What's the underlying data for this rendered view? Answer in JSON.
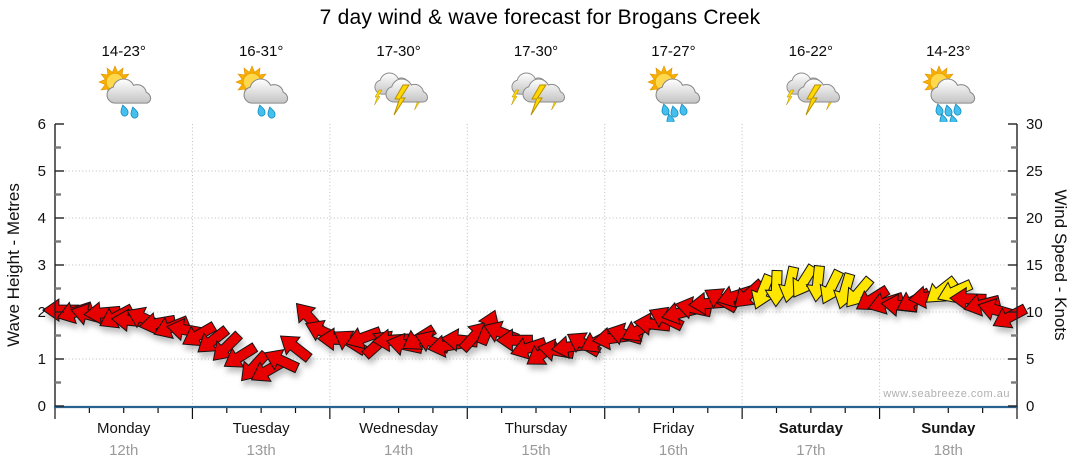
{
  "title": "7 day wind & wave forecast for Brogans Creek",
  "watermark": "www.seabreeze.com.au",
  "days": [
    {
      "name": "Monday",
      "date": "12th",
      "temp": "14-23°",
      "icon": "sun-cloud-rain",
      "drops": 2,
      "bold": false
    },
    {
      "name": "Tuesday",
      "date": "13th",
      "temp": "16-31°",
      "icon": "sun-cloud-rain",
      "drops": 2,
      "bold": false
    },
    {
      "name": "Wednesday",
      "date": "14th",
      "temp": "17-30°",
      "icon": "storm",
      "drops": 0,
      "bold": false
    },
    {
      "name": "Thursday",
      "date": "15th",
      "temp": "17-30°",
      "icon": "storm",
      "drops": 0,
      "bold": false
    },
    {
      "name": "Friday",
      "date": "16th",
      "temp": "17-27°",
      "icon": "sun-cloud-rain",
      "drops": 4,
      "bold": false
    },
    {
      "name": "Saturday",
      "date": "17th",
      "temp": "16-22°",
      "icon": "storm",
      "drops": 0,
      "bold": true
    },
    {
      "name": "Sunday",
      "date": "18th",
      "temp": "14-23°",
      "icon": "sun-cloud-rain",
      "drops": 5,
      "bold": true
    }
  ],
  "axes": {
    "left": {
      "title": "Wave Height - Metres",
      "ticks": [
        0,
        1,
        2,
        3,
        4,
        5,
        6
      ],
      "range": [
        0,
        6
      ]
    },
    "right": {
      "title": "Wind Speed - Knots",
      "ticks": [
        0,
        5,
        10,
        15,
        20,
        25,
        30
      ],
      "range": [
        0,
        30
      ]
    }
  },
  "colors": {
    "arrow_red": "#e60000",
    "arrow_yellow": "#ffe600",
    "arrow_outline": "#141414",
    "axis_blue": "#2a628f",
    "axis_dark": "#222222",
    "grid": "#bdbdbd",
    "minor_tick": "#7a7a7a",
    "date_gray": "#9a9a9a",
    "watermark_gray": "#b0b0b0"
  },
  "chart_data": {
    "type": "scatter",
    "subtype": "wind-arrow-timeline",
    "title": "7 day wind & wave forecast for Brogans Creek",
    "categories": [
      "Monday 12th",
      "Tuesday 13th",
      "Wednesday 14th",
      "Thursday 15th",
      "Friday 16th",
      "Saturday 17th",
      "Sunday 18th"
    ],
    "daily_temps_c": [
      "14-23",
      "16-31",
      "17-30",
      "17-30",
      "17-27",
      "16-22",
      "14-23"
    ],
    "daily_weather": [
      "partly-cloudy-showers",
      "partly-cloudy-showers",
      "thunderstorm",
      "thunderstorm",
      "partly-cloudy-rain",
      "thunderstorm",
      "partly-cloudy-rain"
    ],
    "y_left": {
      "label": "Wave Height - Metres",
      "range": [
        0,
        6
      ],
      "ticks": [
        0,
        1,
        2,
        3,
        4,
        5,
        6
      ]
    },
    "y_right": {
      "label": "Wind Speed - Knots",
      "range": [
        0,
        30
      ],
      "ticks": [
        0,
        5,
        10,
        15,
        20,
        25,
        30
      ]
    },
    "grid": "dotted, horizontal each metre, vertical each day boundary",
    "legend": "none",
    "point_format": "[t_days_from_monday, wind_speed_knots, arrow_rotation_deg_0E_90S, color r|y]",
    "wind": [
      [
        0.05,
        10.2,
        180,
        "r"
      ],
      [
        0.15,
        10.0,
        162,
        "r"
      ],
      [
        0.25,
        9.7,
        195,
        "r"
      ],
      [
        0.35,
        9.9,
        175,
        "r"
      ],
      [
        0.45,
        9.5,
        152,
        "r"
      ],
      [
        0.55,
        9.1,
        185,
        "r"
      ],
      [
        0.65,
        9.3,
        205,
        "r"
      ],
      [
        0.75,
        8.8,
        170,
        "r"
      ],
      [
        0.85,
        8.4,
        158,
        "r"
      ],
      [
        0.95,
        8.1,
        190,
        "r"
      ],
      [
        1.05,
        7.6,
        150,
        "r"
      ],
      [
        1.15,
        7.0,
        142,
        "r"
      ],
      [
        1.25,
        6.3,
        135,
        "r"
      ],
      [
        1.35,
        5.3,
        148,
        "r"
      ],
      [
        1.45,
        4.2,
        132,
        "r"
      ],
      [
        1.55,
        3.8,
        150,
        "r"
      ],
      [
        1.65,
        4.8,
        205,
        "r"
      ],
      [
        1.75,
        6.2,
        218,
        "r"
      ],
      [
        1.85,
        9.4,
        228,
        "r"
      ],
      [
        1.95,
        7.9,
        205,
        "r"
      ],
      [
        2.05,
        7.1,
        182,
        "r"
      ],
      [
        2.15,
        6.8,
        212,
        "r"
      ],
      [
        2.25,
        7.3,
        160,
        "r"
      ],
      [
        2.35,
        6.6,
        318,
        "r"
      ],
      [
        2.45,
        7.0,
        176,
        "r"
      ],
      [
        2.55,
        6.5,
        192,
        "r"
      ],
      [
        2.65,
        7.2,
        148,
        "r"
      ],
      [
        2.75,
        6.8,
        202,
        "r"
      ],
      [
        2.85,
        6.4,
        170,
        "r"
      ],
      [
        2.95,
        7.0,
        186,
        "r"
      ],
      [
        3.05,
        7.4,
        312,
        "r"
      ],
      [
        3.15,
        8.3,
        292,
        "r"
      ],
      [
        3.25,
        7.8,
        202,
        "r"
      ],
      [
        3.35,
        7.0,
        180,
        "r"
      ],
      [
        3.45,
        6.2,
        162,
        "r"
      ],
      [
        3.55,
        5.6,
        146,
        "r"
      ],
      [
        3.65,
        5.9,
        190,
        "r"
      ],
      [
        3.75,
        6.3,
        172,
        "r"
      ],
      [
        3.85,
        6.6,
        210,
        "r"
      ],
      [
        3.95,
        6.9,
        152,
        "r"
      ],
      [
        4.05,
        7.2,
        172,
        "r"
      ],
      [
        4.15,
        7.6,
        196,
        "r"
      ],
      [
        4.25,
        8.1,
        152,
        "r"
      ],
      [
        4.35,
        8.7,
        186,
        "r"
      ],
      [
        4.45,
        9.3,
        206,
        "r"
      ],
      [
        4.55,
        9.9,
        166,
        "r"
      ],
      [
        4.65,
        10.4,
        192,
        "r"
      ],
      [
        4.75,
        10.9,
        176,
        "r"
      ],
      [
        4.85,
        11.3,
        210,
        "r"
      ],
      [
        4.95,
        11.7,
        162,
        "r"
      ],
      [
        5.05,
        11.9,
        138,
        "r"
      ],
      [
        5.15,
        12.2,
        112,
        "y"
      ],
      [
        5.25,
        12.6,
        92,
        "y"
      ],
      [
        5.35,
        13.0,
        102,
        "y"
      ],
      [
        5.45,
        13.3,
        122,
        "y"
      ],
      [
        5.55,
        13.1,
        96,
        "y"
      ],
      [
        5.65,
        12.7,
        116,
        "y"
      ],
      [
        5.75,
        12.3,
        106,
        "y"
      ],
      [
        5.85,
        12.1,
        130,
        "y"
      ],
      [
        5.95,
        11.4,
        148,
        "r"
      ],
      [
        6.05,
        11.0,
        162,
        "r"
      ],
      [
        6.15,
        10.7,
        186,
        "r"
      ],
      [
        6.25,
        11.2,
        152,
        "r"
      ],
      [
        6.35,
        11.6,
        172,
        "r"
      ],
      [
        6.45,
        12.3,
        142,
        "y"
      ],
      [
        6.55,
        12.2,
        156,
        "y"
      ],
      [
        6.65,
        11.4,
        182,
        "r"
      ],
      [
        6.75,
        10.8,
        166,
        "r"
      ],
      [
        6.85,
        10.2,
        196,
        "r"
      ],
      [
        6.95,
        9.5,
        152,
        "r"
      ]
    ]
  }
}
